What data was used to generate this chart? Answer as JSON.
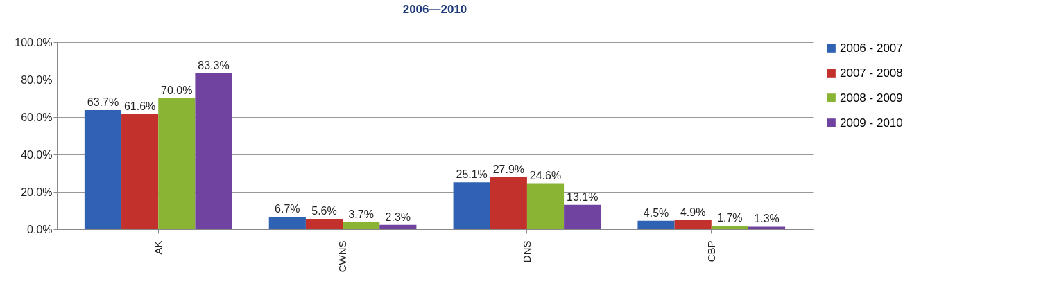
{
  "chart_data": {
    "type": "bar",
    "title": "2006—2010",
    "categories": [
      "AK",
      "CWNS",
      "DNS",
      "CBP"
    ],
    "series": [
      {
        "name": "2006 - 2007",
        "color": "#2f62b3",
        "values": [
          63.7,
          6.7,
          25.1,
          4.5
        ],
        "value_labels": [
          "63.7%",
          "6.7%",
          "25.1%",
          "4.5%"
        ]
      },
      {
        "name": "2007 - 2008",
        "color": "#c3312c",
        "values": [
          61.6,
          5.6,
          27.9,
          4.9
        ],
        "value_labels": [
          "61.6%",
          "5.6%",
          "27.9%",
          "4.9%"
        ]
      },
      {
        "name": "2008 - 2009",
        "color": "#8ab534",
        "values": [
          70.0,
          3.7,
          24.6,
          1.7
        ],
        "value_labels": [
          "70.0%",
          "3.7%",
          "24.6%",
          "1.7%"
        ]
      },
      {
        "name": "2009 - 2010",
        "color": "#7143a0",
        "values": [
          83.3,
          2.3,
          13.1,
          1.3
        ],
        "value_labels": [
          "83.3%",
          "2.3%",
          "13.1%",
          "1.3%"
        ]
      }
    ],
    "ylim": [
      0,
      100
    ],
    "yticks": [
      {
        "value": 0,
        "label": "0.0%"
      },
      {
        "value": 20,
        "label": "20.0%"
      },
      {
        "value": 40,
        "label": "40.0%"
      },
      {
        "value": 60,
        "label": "60.0%"
      },
      {
        "value": 80,
        "label": "80.0%"
      },
      {
        "value": 100,
        "label": "100.0%"
      }
    ],
    "grid": "y",
    "legend": "right"
  }
}
